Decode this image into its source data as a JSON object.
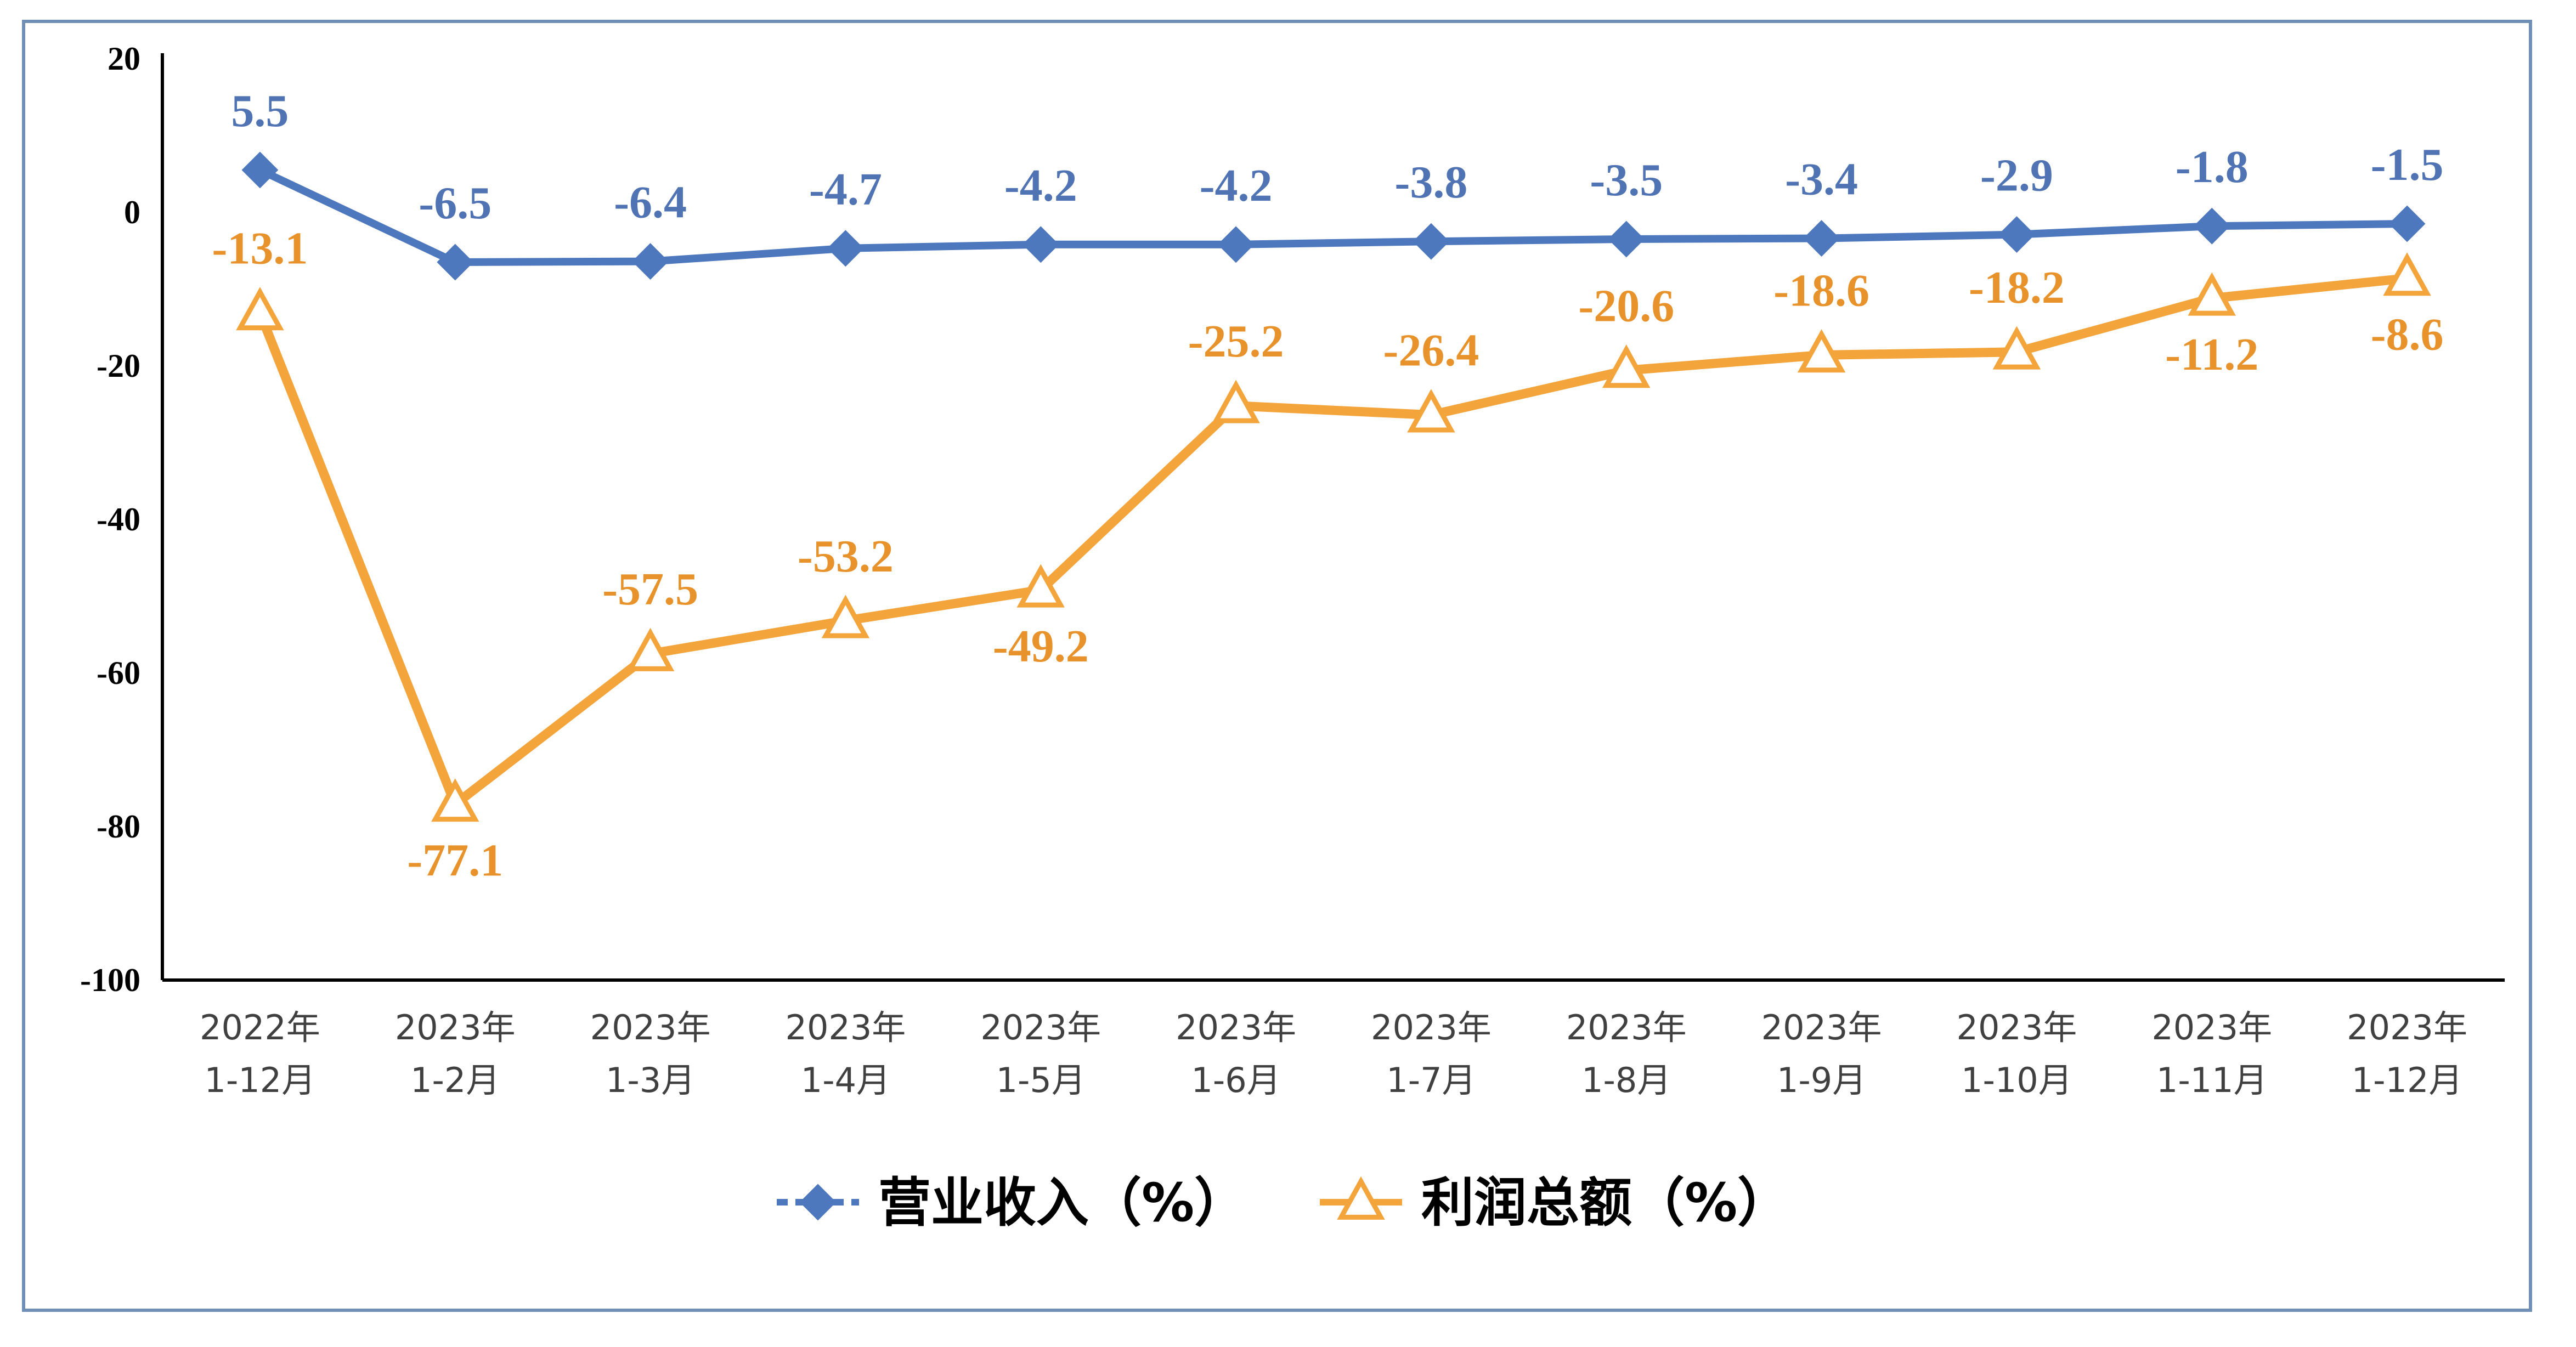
{
  "chart_data": {
    "type": "line",
    "categories": [
      [
        "2022年",
        "1-12月"
      ],
      [
        "2023年",
        "1-2月"
      ],
      [
        "2023年",
        "1-3月"
      ],
      [
        "2023年",
        "1-4月"
      ],
      [
        "2023年",
        "1-5月"
      ],
      [
        "2023年",
        "1-6月"
      ],
      [
        "2023年",
        "1-7月"
      ],
      [
        "2023年",
        "1-8月"
      ],
      [
        "2023年",
        "1-9月"
      ],
      [
        "2023年",
        "1-10月"
      ],
      [
        "2023年",
        "1-11月"
      ],
      [
        "2023年",
        "1-12月"
      ]
    ],
    "series": [
      {
        "name": "营业收入（%）",
        "values": [
          5.5,
          -6.5,
          -6.4,
          -4.7,
          -4.2,
          -4.2,
          -3.8,
          -3.5,
          -3.4,
          -2.9,
          -1.8,
          -1.5
        ],
        "labels": [
          "5.5",
          "-6.5",
          "-6.4",
          "-4.7",
          "-4.2",
          "-4.2",
          "-3.8",
          "-3.5",
          "-3.4",
          "-2.9",
          "-1.8",
          "-1.5"
        ],
        "color": "#4e78be",
        "label_color": "#4f73b3",
        "marker": "diamond"
      },
      {
        "name": "利润总额（%）",
        "values": [
          -13.1,
          -77.1,
          -57.5,
          -53.2,
          -49.2,
          -25.2,
          -26.4,
          -20.6,
          -18.6,
          -18.2,
          -11.2,
          -8.6
        ],
        "labels": [
          "-13.1",
          "-77.1",
          "-57.5",
          "-53.2",
          "-49.2",
          "-25.2",
          "-26.4",
          "-20.6",
          "-18.6",
          "-18.2",
          "-11.2",
          "-8.6"
        ],
        "color": "#f3a43b",
        "label_color": "#e8922c",
        "marker": "triangle"
      }
    ],
    "ylim": [
      -100,
      20
    ],
    "yticks": [
      "20",
      "0",
      "-20",
      "-40",
      "-60",
      "-80",
      "-100"
    ],
    "title": "",
    "xlabel": "",
    "ylabel": "",
    "legend_position": "bottom",
    "grid": false
  }
}
